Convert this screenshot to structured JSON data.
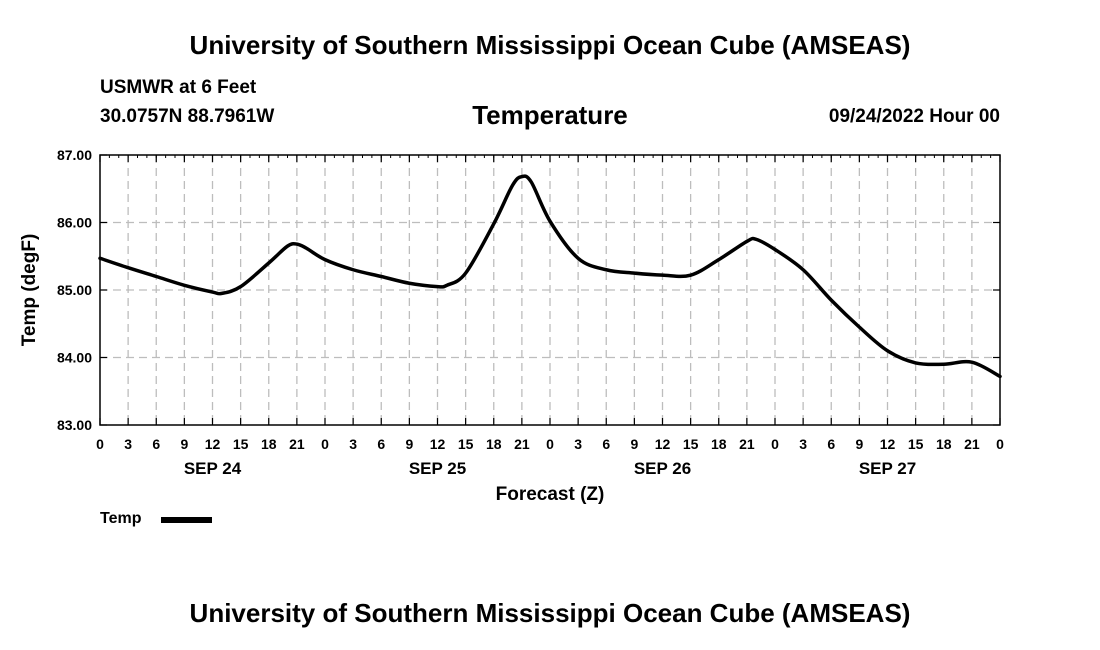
{
  "header": {
    "title": "University of Southern Mississippi Ocean Cube (AMSEAS)",
    "station": "USMWR at 6 Feet",
    "coordinates": "30.0757N  88.7961W",
    "datetime": "09/24/2022 Hour 00"
  },
  "footer": {
    "title": "University of Southern Mississippi Ocean Cube (AMSEAS)"
  },
  "legend": {
    "label": "Temp",
    "color": "#000000"
  },
  "chart_data": {
    "type": "line",
    "title": "Temperature",
    "xlabel": "Forecast (Z)",
    "ylabel": "Temp (degF)",
    "xlim": [
      0,
      96
    ],
    "ylim": [
      83.0,
      87.0
    ],
    "yticks": [
      "83.00",
      "84.00",
      "85.00",
      "86.00",
      "87.00"
    ],
    "xticks": [
      "0",
      "3",
      "6",
      "9",
      "12",
      "15",
      "18",
      "21",
      "0",
      "3",
      "6",
      "9",
      "12",
      "15",
      "18",
      "21",
      "0",
      "3",
      "6",
      "9",
      "12",
      "15",
      "18",
      "21",
      "0",
      "3",
      "6",
      "9",
      "12",
      "15",
      "18",
      "21",
      "0"
    ],
    "day_labels": [
      {
        "label": "SEP 24",
        "hour": 12
      },
      {
        "label": "SEP 25",
        "hour": 36
      },
      {
        "label": "SEP 26",
        "hour": 60
      },
      {
        "label": "SEP 27",
        "hour": 84
      }
    ],
    "grid": true,
    "series": [
      {
        "name": "Temp",
        "color": "#000000",
        "x": [
          0,
          3,
          6,
          9,
          12,
          13,
          15,
          18,
          20,
          21,
          22,
          24,
          27,
          30,
          33,
          36,
          37,
          39,
          42,
          44,
          45,
          46,
          48,
          51,
          54,
          57,
          60,
          63,
          66,
          69,
          70,
          72,
          75,
          78,
          81,
          84,
          87,
          90,
          93,
          96
        ],
        "y": [
          85.47,
          85.33,
          85.2,
          85.07,
          84.97,
          84.95,
          85.05,
          85.4,
          85.65,
          85.68,
          85.62,
          85.45,
          85.3,
          85.2,
          85.1,
          85.05,
          85.07,
          85.25,
          85.98,
          86.55,
          86.68,
          86.6,
          86.02,
          85.47,
          85.3,
          85.25,
          85.22,
          85.22,
          85.45,
          85.72,
          85.75,
          85.6,
          85.3,
          84.85,
          84.45,
          84.1,
          83.92,
          83.9,
          83.93,
          83.72
        ]
      }
    ]
  }
}
